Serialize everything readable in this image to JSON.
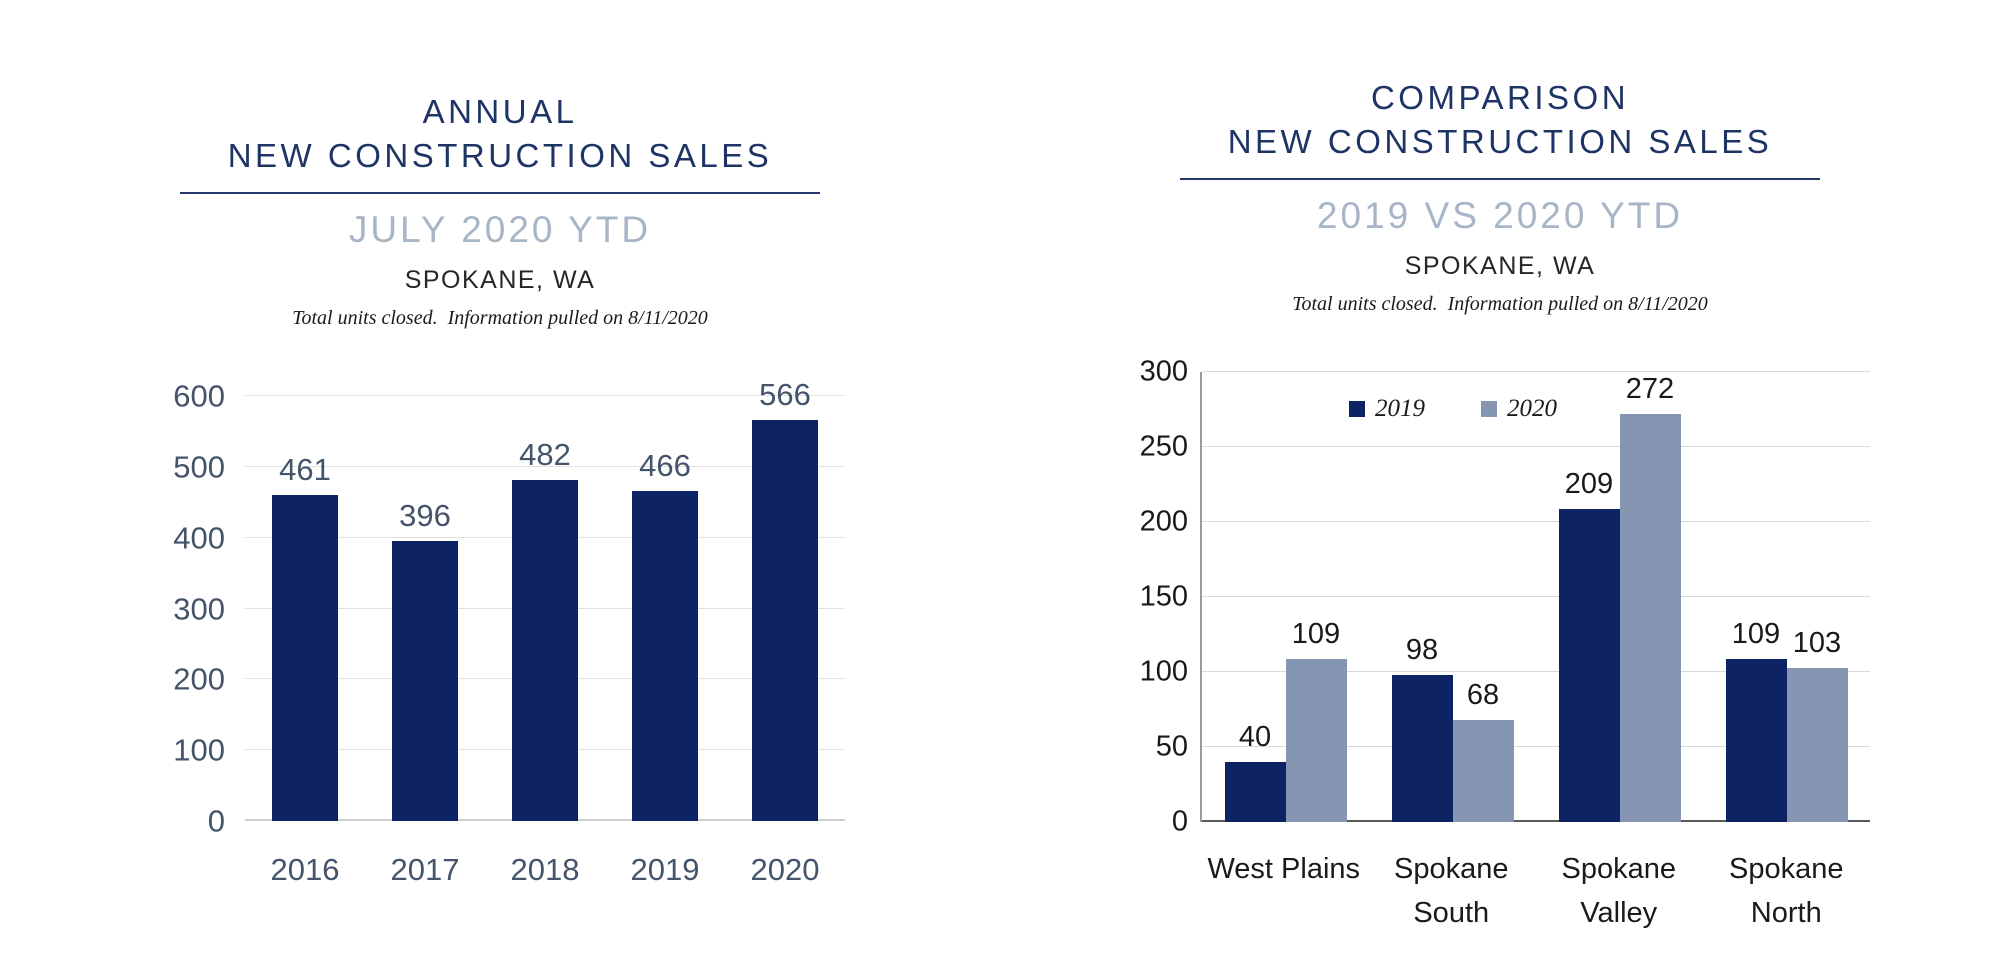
{
  "colors": {
    "bar_navy": "#0E2363",
    "bar_steel": "#8595B2",
    "title_navy": "#1E3464",
    "subtitle_steel": "#A8B5C7",
    "axis_blue_gray": "#44546A",
    "ink": "#1A1A1A",
    "rule_navy": "#24386B"
  },
  "left_panel": {
    "title_line1": "ANNUAL",
    "title_line2": "NEW CONSTRUCTION SALES",
    "subtitle": "JULY 2020 YTD",
    "location": "SPOKANE, WA",
    "note": "Total units closed.  Information pulled on 8/11/2020"
  },
  "right_panel": {
    "title_line1": "COMPARISON",
    "title_line2": "NEW CONSTRUCTION SALES",
    "subtitle": "2019 VS 2020 YTD",
    "location": "SPOKANE, WA",
    "note": "Total units closed.  Information pulled on 8/11/2020"
  },
  "chart_data": [
    {
      "type": "bar",
      "title": "Annual New Construction Sales - July 2020 YTD - Spokane, WA",
      "categories": [
        "2016",
        "2017",
        "2018",
        "2019",
        "2020"
      ],
      "values": [
        461,
        396,
        482,
        466,
        566
      ],
      "bar_color": "#0E2363",
      "label_color": "#44546A",
      "ylim": [
        0,
        600
      ],
      "ytick_step": 100,
      "grid": true,
      "legend": false,
      "data_labels": true
    },
    {
      "type": "bar",
      "title": "Comparison New Construction Sales - 2019 vs 2020 YTD - Spokane, WA",
      "categories": [
        "West Plains",
        "Spokane\nSouth",
        "Spokane\nValley",
        "Spokane\nNorth"
      ],
      "series": [
        {
          "name": "2019",
          "values": [
            40,
            98,
            209,
            109
          ],
          "color": "#0E2363"
        },
        {
          "name": "2020",
          "values": [
            109,
            68,
            272,
            103
          ],
          "color": "#8595B2"
        }
      ],
      "label_color": "#1A1A1A",
      "ylim": [
        0,
        300
      ],
      "ytick_step": 50,
      "grid": true,
      "legend": true,
      "legend_position": "top-inside",
      "data_labels": true
    }
  ]
}
